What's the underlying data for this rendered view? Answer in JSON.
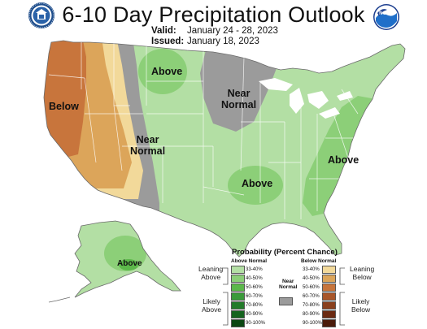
{
  "title": "6-10 Day Precipitation Outlook",
  "valid_label": "Valid:",
  "valid_dates": "January 24 - 28, 2023",
  "issued_label": "Issued:",
  "issued_date": "January 18, 2023",
  "logos": {
    "left": "doc-seal-icon",
    "right": "noaa-logo-icon",
    "right_text": "NOAA"
  },
  "map_labels": {
    "below_west": "Below",
    "near_normal_west_1": "Near",
    "near_normal_west_2": "Normal",
    "above_north": "Above",
    "near_normal_north_1": "Near",
    "near_normal_north_2": "Normal",
    "above_south": "Above",
    "above_east": "Above",
    "above_alaska": "Above"
  },
  "legend": {
    "title": "Probability (Percent Chance)",
    "above_header": "Above Normal",
    "below_header": "Below Normal",
    "near_header_1": "Near",
    "near_header_2": "Normal",
    "leaning_above_1": "Leaning",
    "leaning_above_2": "Above",
    "likely_above_1": "Likely",
    "likely_above_2": "Above",
    "leaning_below_1": "Leaning",
    "leaning_below_2": "Below",
    "likely_below_1": "Likely",
    "likely_below_2": "Below",
    "above": [
      {
        "label": "33-40%",
        "color": "#b3dfa4"
      },
      {
        "label": "40-50%",
        "color": "#8ccf78"
      },
      {
        "label": "50-60%",
        "color": "#5cb84a"
      },
      {
        "label": "60-70%",
        "color": "#3a9a3a"
      },
      {
        "label": "70-80%",
        "color": "#237b2a"
      },
      {
        "label": "80-90%",
        "color": "#14631e"
      },
      {
        "label": "90-100%",
        "color": "#0a4612"
      }
    ],
    "below": [
      {
        "label": "33-40%",
        "color": "#f2d99a"
      },
      {
        "label": "40-50%",
        "color": "#dca55a"
      },
      {
        "label": "50-60%",
        "color": "#c8753c"
      },
      {
        "label": "60-70%",
        "color": "#a8562a"
      },
      {
        "label": "70-80%",
        "color": "#8a3f1c"
      },
      {
        "label": "80-90%",
        "color": "#6b2a12"
      },
      {
        "label": "90-100%",
        "color": "#4a1b0a"
      }
    ],
    "near_color": "#9b9b9b"
  }
}
